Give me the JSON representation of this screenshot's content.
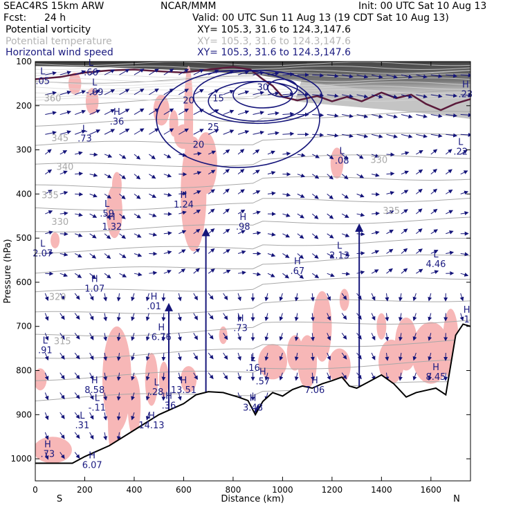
{
  "header": {
    "model": "SEAC4RS 15km ARW",
    "center": "NCAR/MMM",
    "init": "Init: 00 UTC Sat 10 Aug 13",
    "fcst_label": "Fcst:",
    "fcst_value": "24 h",
    "valid": "Valid: 00 UTC Sun 11 Aug 13 (19 CDT Sat 10 Aug 13)",
    "fields": [
      {
        "name": "Potential vorticity",
        "xy": "XY= 105.3, 31.6 to 124.3,147.6",
        "color": "#000000"
      },
      {
        "name": "Potential temperature",
        "xy": "XY= 105.3, 31.6 to 124.3,147.6",
        "color": "#b4b4b4"
      },
      {
        "name": "Horizontal wind speed",
        "xy": "XY= 105.3, 31.6 to 124.3,147.6",
        "color": "#1a1a80"
      }
    ]
  },
  "colors": {
    "pv_fill": "#f7b7b7",
    "theta": "#a8a8a8",
    "wind": "#15157a",
    "tropopause": "#5a1a3a",
    "terrain": "#000000"
  },
  "chart_data": {
    "type": "cross-section",
    "xlabel": "Distance (km)",
    "ylabel": "Pressure (hPa)",
    "x_end_labels": {
      "left": "S",
      "right": "N"
    },
    "xlim": [
      0,
      1760
    ],
    "ylim": [
      1050,
      100
    ],
    "x_ticks": [
      0,
      200,
      400,
      600,
      800,
      1000,
      1200,
      1400,
      1600
    ],
    "y_ticks": [
      100,
      200,
      300,
      400,
      500,
      600,
      700,
      800,
      900,
      1000
    ],
    "terrain": [
      [
        0,
        1010
      ],
      [
        150,
        1010
      ],
      [
        200,
        995
      ],
      [
        300,
        970
      ],
      [
        400,
        935
      ],
      [
        500,
        900
      ],
      [
        600,
        875
      ],
      [
        650,
        855
      ],
      [
        700,
        848
      ],
      [
        760,
        850
      ],
      [
        820,
        860
      ],
      [
        860,
        868
      ],
      [
        890,
        900
      ],
      [
        920,
        870
      ],
      [
        960,
        850
      ],
      [
        1000,
        858
      ],
      [
        1040,
        843
      ],
      [
        1080,
        835
      ],
      [
        1120,
        840
      ],
      [
        1160,
        830
      ],
      [
        1200,
        823
      ],
      [
        1240,
        815
      ],
      [
        1270,
        835
      ],
      [
        1300,
        840
      ],
      [
        1350,
        825
      ],
      [
        1400,
        810
      ],
      [
        1450,
        830
      ],
      [
        1500,
        860
      ],
      [
        1540,
        850
      ],
      [
        1580,
        845
      ],
      [
        1620,
        840
      ],
      [
        1660,
        855
      ],
      [
        1700,
        720
      ],
      [
        1730,
        695
      ],
      [
        1760,
        700
      ]
    ],
    "pv_labels": [
      {
        "letter": "L",
        "value": ".66",
        "x": 225,
        "p": 120
      },
      {
        "letter": "L",
        "value": ".05",
        "x": 30,
        "p": 140
      },
      {
        "letter": "L",
        "value": "-.69",
        "x": 240,
        "p": 165
      },
      {
        "letter": "H",
        "value": ".36",
        "x": 330,
        "p": 232
      },
      {
        "letter": "L",
        "value": ".73",
        "x": 200,
        "p": 270
      },
      {
        "letter": "L",
        "value": ".59",
        "x": 290,
        "p": 440
      },
      {
        "letter": "H",
        "value": "1.32",
        "x": 310,
        "p": 470
      },
      {
        "letter": "H",
        "value": "1.24",
        "x": 600,
        "p": 420
      },
      {
        "letter": "H",
        "value": ".98",
        "x": 840,
        "p": 470
      },
      {
        "letter": "L",
        "value": "2.07",
        "x": 30,
        "p": 530
      },
      {
        "letter": "H",
        "value": "1.07",
        "x": 240,
        "p": 610
      },
      {
        "letter": "H",
        "value": ".01",
        "x": 480,
        "p": 650
      },
      {
        "letter": "H",
        "value": "6.76",
        "x": 510,
        "p": 720
      },
      {
        "letter": "H",
        "value": ".73",
        "x": 830,
        "p": 700
      },
      {
        "letter": "H",
        "value": ".67",
        "x": 1060,
        "p": 570
      },
      {
        "letter": "L",
        "value": "2.13",
        "x": 1230,
        "p": 535
      },
      {
        "letter": "L",
        "value": "4.46",
        "x": 1620,
        "p": 555
      },
      {
        "letter": "L",
        "value": ".91",
        "x": 40,
        "p": 750
      },
      {
        "letter": "L",
        "value": ".16",
        "x": 880,
        "p": 790
      },
      {
        "letter": "H",
        "value": ".57",
        "x": 920,
        "p": 820
      },
      {
        "letter": "H",
        "value": "8.58",
        "x": 240,
        "p": 840
      },
      {
        "letter": "L",
        "value": ".28",
        "x": 490,
        "p": 845
      },
      {
        "letter": "H",
        "value": "13.51",
        "x": 600,
        "p": 840
      },
      {
        "letter": "H",
        "value": "7.06",
        "x": 1130,
        "p": 840
      },
      {
        "letter": "H",
        "value": "8.45",
        "x": 1620,
        "p": 810
      },
      {
        "letter": "L",
        "value": "-.11",
        "x": 250,
        "p": 880
      },
      {
        "letter": "H",
        "value": ".36",
        "x": 540,
        "p": 875
      },
      {
        "letter": "H",
        "value": "3.48",
        "x": 880,
        "p": 880
      },
      {
        "letter": "L",
        "value": ".31",
        "x": 190,
        "p": 920
      },
      {
        "letter": "H",
        "value": "14.13",
        "x": 470,
        "p": 920
      },
      {
        "letter": "H",
        "value": ".73",
        "x": 50,
        "p": 985
      },
      {
        "letter": "H",
        "value": "6.07",
        "x": 230,
        "p": 1010
      },
      {
        "letter": "L",
        "value": ".08",
        "x": 1240,
        "p": 320
      },
      {
        "letter": "L",
        "value": ".22",
        "x": 1720,
        "p": 300
      },
      {
        "letter": "H",
        "value": ".23",
        "x": 1740,
        "p": 170
      },
      {
        "letter": "H",
        "value": "1",
        "x": 1745,
        "p": 680
      }
    ],
    "theta_labels": [
      {
        "value": "360",
        "x": 70,
        "p": 190
      },
      {
        "value": "345",
        "x": 100,
        "p": 280
      },
      {
        "value": "340",
        "x": 120,
        "p": 345
      },
      {
        "value": "335",
        "x": 60,
        "p": 410
      },
      {
        "value": "330",
        "x": 100,
        "p": 470
      },
      {
        "value": "320",
        "x": 90,
        "p": 640
      },
      {
        "value": "315",
        "x": 110,
        "p": 740
      },
      {
        "value": "325",
        "x": 1440,
        "p": 445
      },
      {
        "value": "330",
        "x": 1390,
        "p": 330
      }
    ],
    "wind_labels": [
      {
        "value": "20",
        "x": 620,
        "p": 195
      },
      {
        "value": "25",
        "x": 720,
        "p": 255
      },
      {
        "value": "20",
        "x": 660,
        "p": 295
      },
      {
        "value": "15",
        "x": 740,
        "p": 190
      },
      {
        "value": "30",
        "x": 920,
        "p": 165
      }
    ]
  }
}
